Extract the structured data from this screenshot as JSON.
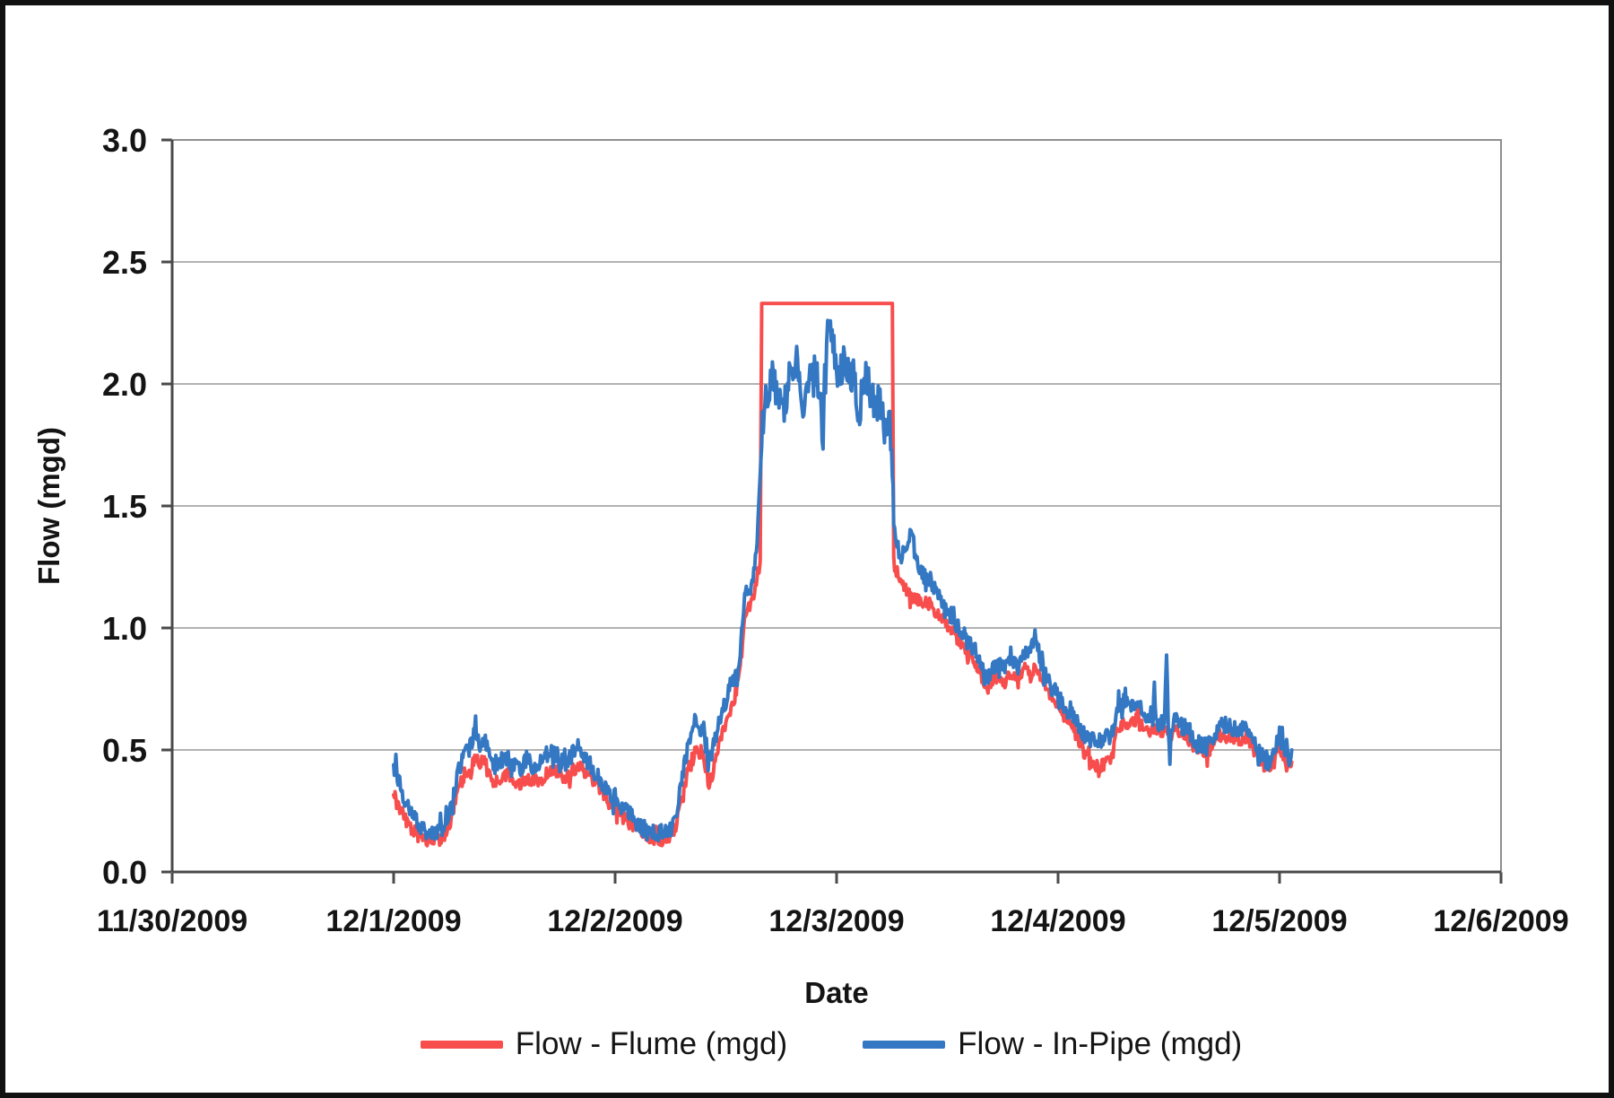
{
  "figure": {
    "background": "#ffffff",
    "border_color": "#111111"
  },
  "chart_data": {
    "type": "line",
    "title": "",
    "xlabel": "Date",
    "ylabel": "Flow (mgd)",
    "grid": "horizontal",
    "legend_position": "bottom-center",
    "ylim": [
      0.0,
      3.0
    ],
    "y_tick_values": [
      3.0,
      2.5,
      2.0,
      1.5,
      1.0,
      0.5,
      0.0
    ],
    "y_tick_labels": [
      "3.0",
      "2.5",
      "2.0",
      "1.5",
      "1.0",
      "0.5",
      "0.0"
    ],
    "x_tick_labels": [
      "11/30/2009",
      "12/1/2009",
      "12/2/2009",
      "12/3/2009",
      "12/4/2009",
      "12/5/2009",
      "12/6/2009"
    ],
    "x_range_days": [
      0,
      6
    ],
    "x_unit": "days since 11/30/2009 00:00",
    "clip_window": {
      "start": 2.66,
      "end": 3.254,
      "flume_clip_value": 2.33
    },
    "noise_seed": 42,
    "sample_step_days": 0.004,
    "series": [
      {
        "name": "Flow - Flume (mgd)",
        "color": "#f84d4d",
        "noise": 0.026,
        "clip_noise": 0.0,
        "data_name": "flume-series-line"
      },
      {
        "name": "Flow - In-Pipe (mgd)",
        "color": "#3477c2",
        "noise": 0.034,
        "clip_noise": 0.075,
        "data_name": "inpipe-series-line"
      }
    ],
    "columns": [
      "days_since_11_30",
      "flume_mgd",
      "inpipe_mgd"
    ],
    "points": [
      [
        1.0,
        0.31,
        0.42
      ],
      [
        1.01,
        0.3,
        0.43
      ],
      [
        1.02,
        0.27,
        0.38
      ],
      [
        1.05,
        0.22,
        0.3
      ],
      [
        1.08,
        0.18,
        0.24
      ],
      [
        1.11,
        0.15,
        0.2
      ],
      [
        1.14,
        0.135,
        0.18
      ],
      [
        1.17,
        0.12,
        0.16
      ],
      [
        1.2,
        0.13,
        0.17
      ],
      [
        1.23,
        0.15,
        0.18
      ],
      [
        1.26,
        0.22,
        0.27
      ],
      [
        1.29,
        0.33,
        0.4
      ],
      [
        1.32,
        0.4,
        0.5
      ],
      [
        1.345,
        0.42,
        0.53
      ],
      [
        1.37,
        0.47,
        0.57
      ],
      [
        1.39,
        0.44,
        0.5
      ],
      [
        1.41,
        0.46,
        0.55
      ],
      [
        1.43,
        0.42,
        0.48
      ],
      [
        1.45,
        0.37,
        0.43
      ],
      [
        1.48,
        0.38,
        0.45
      ],
      [
        1.51,
        0.4,
        0.47
      ],
      [
        1.54,
        0.37,
        0.44
      ],
      [
        1.57,
        0.36,
        0.42
      ],
      [
        1.6,
        0.38,
        0.46
      ],
      [
        1.63,
        0.36,
        0.43
      ],
      [
        1.66,
        0.37,
        0.44
      ],
      [
        1.69,
        0.4,
        0.48
      ],
      [
        1.72,
        0.42,
        0.5
      ],
      [
        1.75,
        0.4,
        0.46
      ],
      [
        1.78,
        0.38,
        0.44
      ],
      [
        1.81,
        0.41,
        0.49
      ],
      [
        1.84,
        0.43,
        0.5
      ],
      [
        1.87,
        0.4,
        0.46
      ],
      [
        1.9,
        0.37,
        0.42
      ],
      [
        1.93,
        0.34,
        0.38
      ],
      [
        1.96,
        0.3,
        0.34
      ],
      [
        2.0,
        0.26,
        0.3
      ],
      [
        2.04,
        0.22,
        0.26
      ],
      [
        2.08,
        0.19,
        0.22
      ],
      [
        2.12,
        0.16,
        0.18
      ],
      [
        2.16,
        0.14,
        0.17
      ],
      [
        2.2,
        0.13,
        0.16
      ],
      [
        2.24,
        0.14,
        0.17
      ],
      [
        2.27,
        0.17,
        0.2
      ],
      [
        2.3,
        0.3,
        0.38
      ],
      [
        2.33,
        0.42,
        0.52
      ],
      [
        2.36,
        0.5,
        0.63
      ],
      [
        2.38,
        0.48,
        0.57
      ],
      [
        2.4,
        0.47,
        0.58
      ],
      [
        2.42,
        0.36,
        0.44
      ],
      [
        2.44,
        0.4,
        0.5
      ],
      [
        2.46,
        0.48,
        0.58
      ],
      [
        2.48,
        0.55,
        0.65
      ],
      [
        2.5,
        0.6,
        0.7
      ],
      [
        2.52,
        0.66,
        0.76
      ],
      [
        2.54,
        0.72,
        0.78
      ],
      [
        2.555,
        0.78,
        0.84
      ],
      [
        2.565,
        0.85,
        0.9
      ],
      [
        2.575,
        0.93,
        1.0
      ],
      [
        2.585,
        1.05,
        1.13
      ],
      [
        2.6,
        1.08,
        1.16
      ],
      [
        2.615,
        1.1,
        1.17
      ],
      [
        2.63,
        1.16,
        1.24
      ],
      [
        2.645,
        1.22,
        1.42
      ],
      [
        2.655,
        1.25,
        1.6
      ],
      [
        2.662,
        2.33,
        1.78
      ],
      [
        2.68,
        2.33,
        1.95
      ],
      [
        2.71,
        2.33,
        2.02
      ],
      [
        2.74,
        2.33,
        1.95
      ],
      [
        2.76,
        2.33,
        1.88
      ],
      [
        2.79,
        2.33,
        2.05
      ],
      [
        2.82,
        2.33,
        2.12
      ],
      [
        2.84,
        2.33,
        1.95
      ],
      [
        2.86,
        2.33,
        1.9
      ],
      [
        2.88,
        2.33,
        2.02
      ],
      [
        2.9,
        2.33,
        2.08
      ],
      [
        2.92,
        2.33,
        2.0
      ],
      [
        2.935,
        2.33,
        1.82
      ],
      [
        2.95,
        2.33,
        2.1
      ],
      [
        2.96,
        2.33,
        2.25
      ],
      [
        2.98,
        2.33,
        2.15
      ],
      [
        3.0,
        2.33,
        2.1
      ],
      [
        3.02,
        2.33,
        2.05
      ],
      [
        3.04,
        2.33,
        2.12
      ],
      [
        3.06,
        2.33,
        1.98
      ],
      [
        3.08,
        2.33,
        2.05
      ],
      [
        3.1,
        2.33,
        1.87
      ],
      [
        3.12,
        2.33,
        2.0
      ],
      [
        3.14,
        2.33,
        2.03
      ],
      [
        3.16,
        2.33,
        1.95
      ],
      [
        3.18,
        2.33,
        1.9
      ],
      [
        3.2,
        2.33,
        1.95
      ],
      [
        3.22,
        2.33,
        1.78
      ],
      [
        3.24,
        2.33,
        1.85
      ],
      [
        3.252,
        2.33,
        1.68
      ],
      [
        3.258,
        1.27,
        1.45
      ],
      [
        3.27,
        1.22,
        1.35
      ],
      [
        3.285,
        1.19,
        1.3
      ],
      [
        3.3,
        1.17,
        1.3
      ],
      [
        3.32,
        1.15,
        1.35
      ],
      [
        3.34,
        1.13,
        1.4
      ],
      [
        3.36,
        1.12,
        1.25
      ],
      [
        3.39,
        1.1,
        1.22
      ],
      [
        3.42,
        1.1,
        1.2
      ],
      [
        3.45,
        1.06,
        1.14
      ],
      [
        3.48,
        1.03,
        1.1
      ],
      [
        3.51,
        1.0,
        1.06
      ],
      [
        3.54,
        0.97,
        1.02
      ],
      [
        3.57,
        0.93,
        0.98
      ],
      [
        3.6,
        0.89,
        0.93
      ],
      [
        3.63,
        0.86,
        0.9
      ],
      [
        3.66,
        0.8,
        0.84
      ],
      [
        3.68,
        0.74,
        0.78
      ],
      [
        3.7,
        0.78,
        0.83
      ],
      [
        3.73,
        0.8,
        0.86
      ],
      [
        3.76,
        0.78,
        0.83
      ],
      [
        3.79,
        0.82,
        0.87
      ],
      [
        3.82,
        0.8,
        0.85
      ],
      [
        3.85,
        0.83,
        0.9
      ],
      [
        3.88,
        0.82,
        0.93
      ],
      [
        3.9,
        0.85,
        0.97
      ],
      [
        3.92,
        0.8,
        0.86
      ],
      [
        3.94,
        0.78,
        0.82
      ],
      [
        3.97,
        0.72,
        0.76
      ],
      [
        4.0,
        0.68,
        0.72
      ],
      [
        4.03,
        0.64,
        0.68
      ],
      [
        4.06,
        0.6,
        0.65
      ],
      [
        4.09,
        0.55,
        0.6
      ],
      [
        4.12,
        0.48,
        0.56
      ],
      [
        4.15,
        0.45,
        0.54
      ],
      [
        4.18,
        0.43,
        0.54
      ],
      [
        4.21,
        0.44,
        0.55
      ],
      [
        4.24,
        0.46,
        0.55
      ],
      [
        4.27,
        0.58,
        0.68
      ],
      [
        4.3,
        0.62,
        0.7
      ],
      [
        4.33,
        0.6,
        0.67
      ],
      [
        4.36,
        0.64,
        0.7
      ],
      [
        4.39,
        0.58,
        0.63
      ],
      [
        4.41,
        0.57,
        0.61
      ],
      [
        4.428,
        0.58,
        0.62
      ],
      [
        4.435,
        0.6,
        0.78
      ],
      [
        4.442,
        0.58,
        0.62
      ],
      [
        4.46,
        0.57,
        0.6
      ],
      [
        4.48,
        0.58,
        0.62
      ],
      [
        4.49,
        0.6,
        0.86
      ],
      [
        4.498,
        0.57,
        0.6
      ],
      [
        4.505,
        0.55,
        0.45
      ],
      [
        4.512,
        0.56,
        0.6
      ],
      [
        4.53,
        0.58,
        0.62
      ],
      [
        4.55,
        0.58,
        0.6
      ],
      [
        4.58,
        0.56,
        0.59
      ],
      [
        4.61,
        0.52,
        0.55
      ],
      [
        4.64,
        0.5,
        0.52
      ],
      [
        4.67,
        0.48,
        0.51
      ],
      [
        4.7,
        0.52,
        0.55
      ],
      [
        4.73,
        0.56,
        0.61
      ],
      [
        4.76,
        0.55,
        0.6
      ],
      [
        4.79,
        0.55,
        0.59
      ],
      [
        4.82,
        0.53,
        0.57
      ],
      [
        4.85,
        0.55,
        0.6
      ],
      [
        4.87,
        0.52,
        0.56
      ],
      [
        4.9,
        0.48,
        0.5
      ],
      [
        4.93,
        0.44,
        0.46
      ],
      [
        4.96,
        0.41,
        0.44
      ],
      [
        4.98,
        0.47,
        0.52
      ],
      [
        5.0,
        0.52,
        0.56
      ],
      [
        5.02,
        0.47,
        0.5
      ],
      [
        5.04,
        0.42,
        0.46
      ],
      [
        5.055,
        0.45,
        0.5
      ]
    ]
  }
}
